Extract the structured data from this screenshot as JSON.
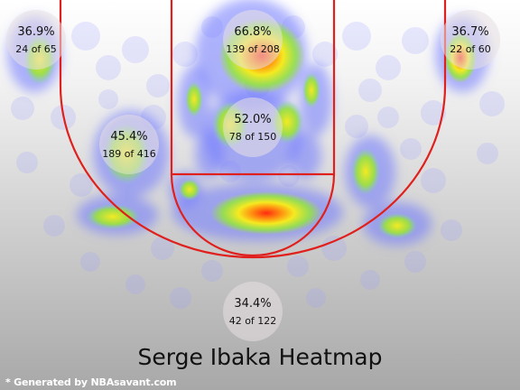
{
  "chart_data": {
    "type": "heatmap",
    "title": "Serge Ibaka Heatmap",
    "zones": [
      {
        "name": "left-corner-three",
        "pct": "36.9%",
        "made": 24,
        "attempts": 65,
        "label": "24 of 65"
      },
      {
        "name": "paint-top",
        "pct": "66.8%",
        "made": 139,
        "attempts": 208,
        "label": "139 of 208"
      },
      {
        "name": "right-corner-three",
        "pct": "36.7%",
        "made": 22,
        "attempts": 60,
        "label": "22 of 60"
      },
      {
        "name": "paint-lower",
        "pct": "52.0%",
        "made": 78,
        "attempts": 150,
        "label": "78 of 150"
      },
      {
        "name": "midrange",
        "pct": "45.4%",
        "made": 189,
        "attempts": 416,
        "label": "189 of 416"
      },
      {
        "name": "above-break-three",
        "pct": "34.4%",
        "made": 42,
        "attempts": 122,
        "label": "42 of 122"
      }
    ],
    "colors": {
      "court_line": "#e0201c",
      "heat_low": "#6f78ff",
      "heat_mid": "#9be33a",
      "heat_high": "#ff3010"
    }
  },
  "footer": {
    "credit": "* Generated by NBAsavant.com"
  }
}
